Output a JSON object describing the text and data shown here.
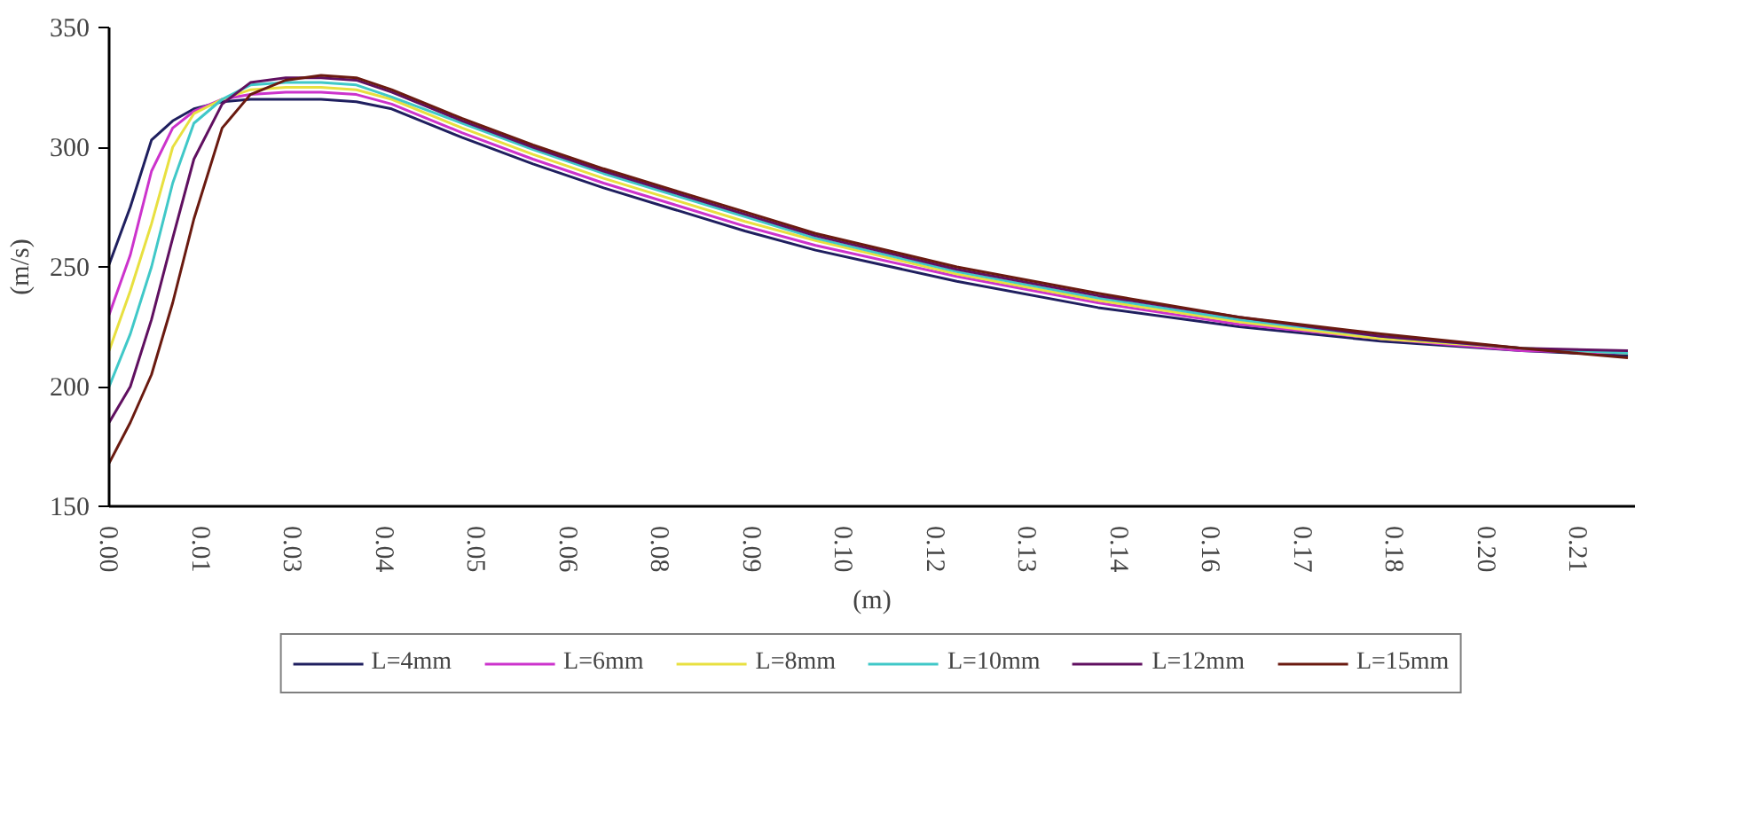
{
  "chart_data": {
    "type": "line",
    "xlabel": "(m)",
    "ylabel": "(m/s)",
    "x": [
      0,
      0.003,
      0.006,
      0.009,
      0.012,
      0.016,
      0.02,
      0.025,
      0.03,
      0.035,
      0.04,
      0.05,
      0.06,
      0.07,
      0.08,
      0.09,
      0.1,
      0.12,
      0.14,
      0.16,
      0.18,
      0.2,
      0.215
    ],
    "xlim": [
      0,
      0.216
    ],
    "xticks": [
      {
        "value": 0,
        "label": "0.00"
      },
      {
        "value": 0.013,
        "label": "0.01"
      },
      {
        "value": 0.026,
        "label": "0.03"
      },
      {
        "value": 0.039,
        "label": "0.04"
      },
      {
        "value": 0.052,
        "label": "0.05"
      },
      {
        "value": 0.065,
        "label": "0.06"
      },
      {
        "value": 0.078,
        "label": "0.08"
      },
      {
        "value": 0.091,
        "label": "0.09"
      },
      {
        "value": 0.104,
        "label": "0.10"
      },
      {
        "value": 0.117,
        "label": "0.12"
      },
      {
        "value": 0.13,
        "label": "0.13"
      },
      {
        "value": 0.143,
        "label": "0.14"
      },
      {
        "value": 0.156,
        "label": "0.16"
      },
      {
        "value": 0.169,
        "label": "0.17"
      },
      {
        "value": 0.182,
        "label": "0.18"
      },
      {
        "value": 0.195,
        "label": "0.20"
      },
      {
        "value": 0.208,
        "label": "0.21"
      }
    ],
    "ylim": [
      150,
      350
    ],
    "yticks": [
      150,
      200,
      250,
      300,
      350
    ],
    "grid": false,
    "legend": "bottom",
    "marker": "none",
    "line_style": "solid",
    "series": [
      {
        "name": "L=4mm",
        "color": "#1f1f5f",
        "values": [
          251,
          275,
          303,
          311,
          316,
          319,
          320,
          320,
          320,
          319,
          316,
          304,
          293,
          283,
          274,
          265,
          257,
          244,
          233,
          225,
          219,
          215,
          213
        ]
      },
      {
        "name": "L=6mm",
        "color": "#cc33cc",
        "values": [
          230,
          255,
          290,
          308,
          315,
          320,
          322,
          323,
          323,
          322,
          318,
          306,
          295,
          285,
          276,
          267,
          259,
          246,
          235,
          226,
          220,
          215,
          214
        ]
      },
      {
        "name": "L=8mm",
        "color": "#e8e040",
        "values": [
          215,
          240,
          268,
          300,
          314,
          320,
          324,
          325,
          325,
          324,
          320,
          308,
          297,
          287,
          278,
          269,
          261,
          247,
          236,
          227,
          220,
          216,
          214
        ]
      },
      {
        "name": "L=10mm",
        "color": "#40c8c8",
        "values": [
          200,
          222,
          250,
          285,
          310,
          320,
          326,
          327,
          327,
          326,
          321,
          310,
          299,
          289,
          280,
          271,
          262,
          248,
          237,
          228,
          221,
          216,
          214
        ]
      },
      {
        "name": "L=12mm",
        "color": "#601060",
        "values": [
          185,
          200,
          228,
          262,
          295,
          318,
          327,
          329,
          329,
          328,
          323,
          311,
          300,
          290,
          281,
          272,
          263,
          249,
          238,
          229,
          221,
          216,
          215
        ]
      },
      {
        "name": "L=15mm",
        "color": "#6a1a10",
        "values": [
          168,
          185,
          205,
          235,
          270,
          308,
          322,
          328,
          330,
          329,
          324,
          312,
          301,
          291,
          282,
          273,
          264,
          250,
          239,
          229,
          222,
          216,
          212
        ]
      }
    ]
  }
}
